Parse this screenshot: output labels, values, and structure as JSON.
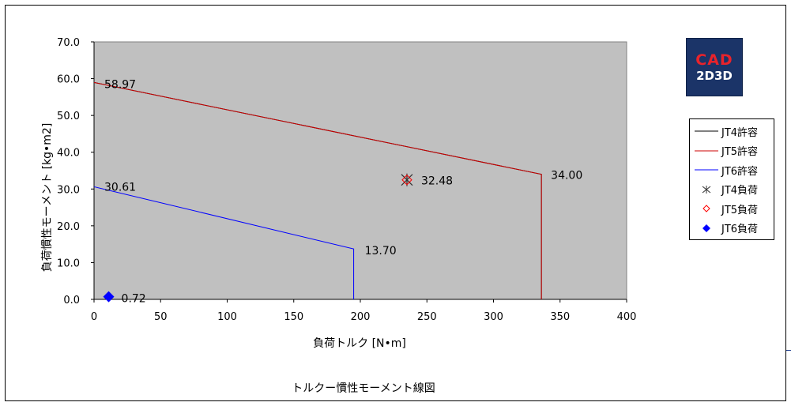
{
  "chart_data": {
    "type": "line",
    "title": "トルクー慣性モーメント線図",
    "xlabel": "負荷トルク [N•m]",
    "ylabel": "負荷慣性モーメント [kg•m2]",
    "xlim": [
      0,
      400
    ],
    "ylim": [
      0,
      70
    ],
    "x_ticks": [
      "0",
      "50",
      "100",
      "150",
      "200",
      "250",
      "300",
      "350",
      "400"
    ],
    "y_ticks": [
      "0.0",
      "10.0",
      "20.0",
      "30.0",
      "40.0",
      "50.0",
      "60.0",
      "70.0"
    ],
    "grid": false,
    "legend_position": "right",
    "plot_background": "#c0c0c0",
    "series": [
      {
        "name": "JT4許容",
        "kind": "line",
        "color": "#000000",
        "points": [
          [
            0,
            58.97
          ],
          [
            336,
            34.0
          ],
          [
            336,
            0
          ]
        ]
      },
      {
        "name": "JT5許容",
        "kind": "line",
        "color": "#cc0000",
        "points": [
          [
            0,
            58.97
          ],
          [
            336,
            34.0
          ],
          [
            336,
            0
          ]
        ]
      },
      {
        "name": "JT6許容",
        "kind": "line",
        "color": "#0000ff",
        "points": [
          [
            0,
            30.61
          ],
          [
            195,
            13.7
          ],
          [
            195,
            0
          ]
        ]
      },
      {
        "name": "JT4負荷",
        "kind": "marker",
        "marker": "star",
        "color": "#333333",
        "points": [
          [
            235,
            32.48
          ]
        ]
      },
      {
        "name": "JT5負荷",
        "kind": "marker",
        "marker": "diamond-open",
        "color": "#ff0000",
        "points": [
          [
            235,
            32.48
          ]
        ]
      },
      {
        "name": "JT6負荷",
        "kind": "marker",
        "marker": "diamond-filled",
        "color": "#0000ff",
        "points": [
          [
            11,
            0.72
          ]
        ]
      }
    ],
    "annotations": [
      {
        "text": "58.97",
        "x": 0,
        "y": 58.97
      },
      {
        "text": "34.00",
        "x": 336,
        "y": 34.0
      },
      {
        "text": "30.61",
        "x": 0,
        "y": 30.61
      },
      {
        "text": "13.70",
        "x": 195,
        "y": 13.7
      },
      {
        "text": "32.48",
        "x": 235,
        "y": 32.48
      },
      {
        "text": "0.72",
        "x": 11,
        "y": 0.72
      }
    ]
  },
  "logo": {
    "line1": "CAD",
    "line2": "2D3D",
    "line1_color": "#e8232b",
    "background": "#1b3468"
  }
}
